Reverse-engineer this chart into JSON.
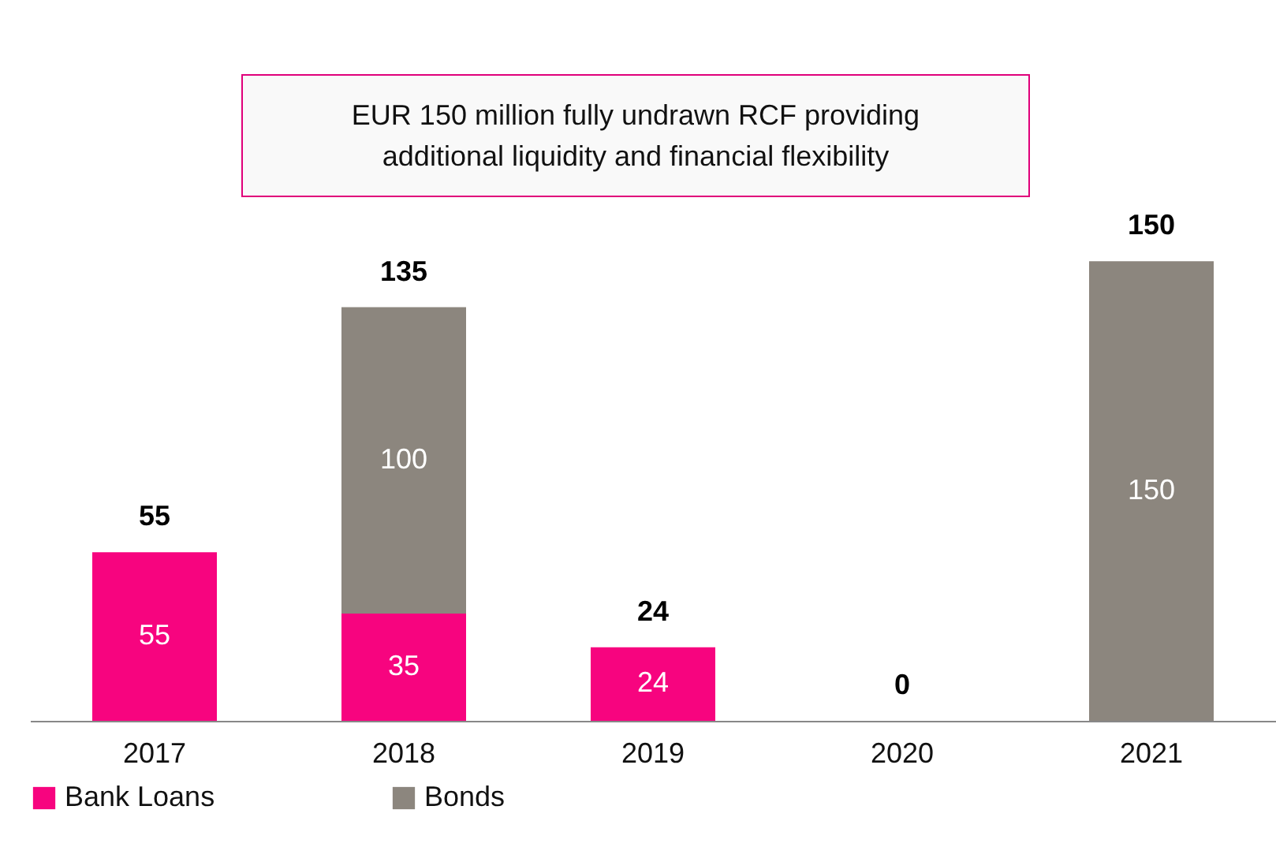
{
  "chart_data": {
    "type": "bar",
    "stacked": true,
    "categories": [
      "2017",
      "2018",
      "2019",
      "2020",
      "2021"
    ],
    "series": [
      {
        "name": "Bank Loans",
        "color": "#f7047f",
        "values": [
          55,
          35,
          24,
          0,
          0
        ],
        "value_labels": [
          "55",
          "35",
          "24",
          null,
          null
        ]
      },
      {
        "name": "Bonds",
        "color": "#8c867e",
        "values": [
          0,
          100,
          0,
          0,
          150
        ],
        "value_labels": [
          null,
          "100",
          null,
          null,
          "150"
        ]
      }
    ],
    "totals": [
      "55",
      "135",
      "24",
      "0",
      "150"
    ],
    "annotations": [
      "EUR 150 million fully undrawn RCF providing additional liquidity and financial flexibility"
    ],
    "legend": "bottom",
    "grid": false
  }
}
